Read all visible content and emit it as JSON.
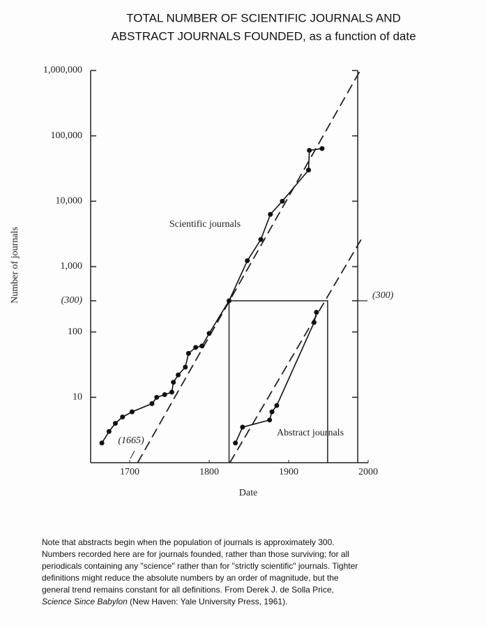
{
  "chart_data": {
    "type": "line",
    "title": [
      "TOTAL NUMBER OF SCIENTIFIC JOURNALS AND",
      "ABSTRACT JOURNALS FOUNDED, as a function of date"
    ],
    "xlabel": "Date",
    "ylabel": "Number of journals",
    "log_y": true,
    "xlim": [
      1650,
      2000
    ],
    "xticks": [
      1700,
      1800,
      1900,
      2000
    ],
    "ylim": [
      1,
      1000000
    ],
    "yticks": [
      {
        "value": 1000000,
        "label": "1,000,000"
      },
      {
        "value": 100000,
        "label": "100,000"
      },
      {
        "value": 10000,
        "label": "10,000"
      },
      {
        "value": 1000,
        "label": "1,000"
      },
      {
        "value": 300,
        "label": "(300)"
      },
      100,
      10
    ],
    "y2ticks": [
      {
        "value": 300,
        "label": "(300)"
      }
    ],
    "series": [
      {
        "name": "Scientific journals",
        "color": "#111111",
        "x": [
          1665,
          1674,
          1682,
          1691,
          1703,
          1728,
          1734,
          1744,
          1753,
          1755,
          1761,
          1770,
          1774,
          1783,
          1791,
          1800,
          1825,
          1848,
          1865,
          1877,
          1892,
          1925,
          1926,
          1942
        ],
        "values": [
          2,
          3,
          4,
          5,
          6,
          8,
          10,
          11,
          12,
          17,
          22,
          29,
          47,
          58,
          61,
          95,
          300,
          1230,
          2600,
          6300,
          10000,
          30000,
          60000,
          64000
        ]
      },
      {
        "name": "Abstract journals",
        "color": "#111111",
        "x": [
          1833,
          1842,
          1876,
          1879,
          1885,
          1932,
          1935
        ],
        "values": [
          2,
          3.5,
          4.5,
          6,
          7.5,
          140,
          200
        ]
      }
    ],
    "trend_lines": [
      {
        "x": [
          1710,
          1990
        ],
        "values": [
          1,
          1000000
        ]
      },
      {
        "x": [
          1826,
          1992
        ],
        "values": [
          1,
          2700
        ]
      }
    ],
    "box": {
      "x": [
        1825,
        1949
      ],
      "y": 300
    },
    "annotation": "(1665)",
    "note": {
      "lines": [
        "Note that abstracts begin when the population of journals is approximately 300.",
        "Numbers recorded here are for journals founded, rather than those surviving; for all",
        "periodicals containing any \"science\" rather than for \"strictly scientific\" journals.  Tighter",
        "definitions might reduce the absolute numbers by an order of magnitude, but the",
        "general trend remains constant for all definitions.  From Derek J. de Solla Price,"
      ],
      "source_title": "Science Since Babylon",
      "source_rest": "(New Haven:  Yale University Press, 1961)."
    }
  }
}
